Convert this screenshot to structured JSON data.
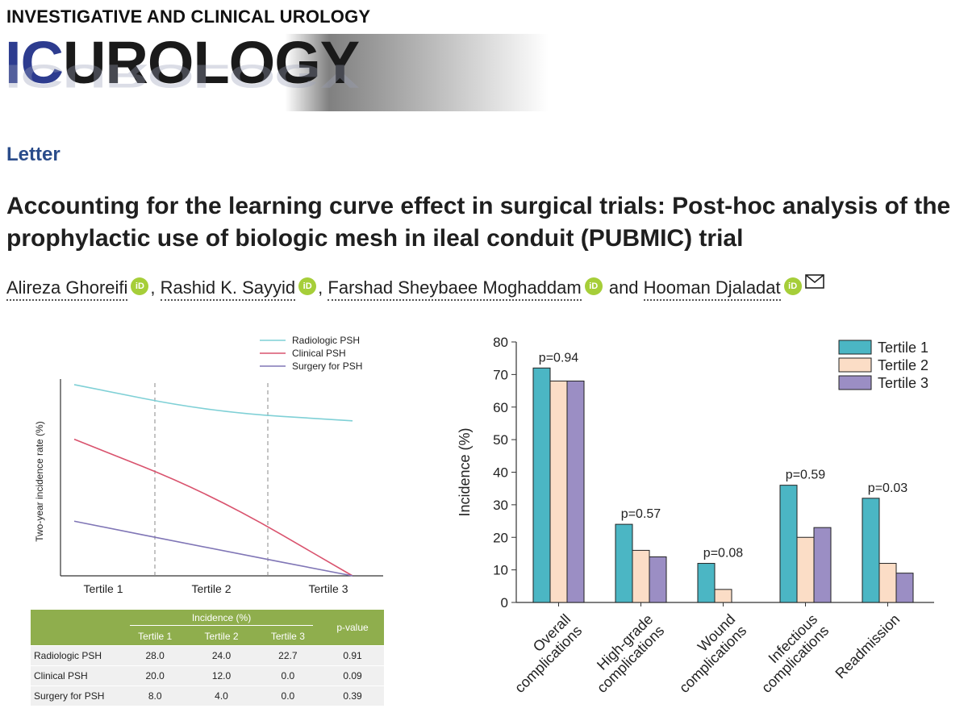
{
  "journal": {
    "top": "INVESTIGATIVE AND CLINICAL UROLOGY",
    "logo_ic": "IC",
    "logo_rest": "UROLOGY"
  },
  "article": {
    "type": "Letter",
    "title": "Accounting for the learning curve effect in surgical trials: Post-hoc analysis of the prophylactic use of biologic mesh in ileal conduit (PUBMIC) trial"
  },
  "authors": {
    "names": [
      "Alireza Ghoreifi",
      "Rashid K. Sayyid",
      "Farshad Sheybaee Moghaddam",
      "Hooman Djaladat"
    ],
    "sep1": ", ",
    "sep2": ", ",
    "sep3": " and ",
    "orcid_label": "iD",
    "orcid_color": "#a6ce39"
  },
  "chart_data": [
    {
      "type": "line",
      "ylabel": "Two-year incidence rate (%)",
      "categories": [
        "Tertile 1",
        "Tertile 2",
        "Tertile 3"
      ],
      "series": [
        {
          "name": "Radiologic PSH",
          "color": "#7fd0d6",
          "values": [
            28.0,
            24.0,
            22.7
          ]
        },
        {
          "name": "Clinical PSH",
          "color": "#d9536e",
          "values": [
            20.0,
            12.0,
            0.0
          ]
        },
        {
          "name": "Surgery for PSH",
          "color": "#8076b6",
          "values": [
            8.0,
            4.0,
            0.0
          ]
        }
      ],
      "ylim": [
        0,
        30
      ],
      "legend": "top-right",
      "vertical_dividers": true
    },
    {
      "type": "bar",
      "ylabel": "Incidence (%)",
      "categories": [
        [
          "Overall",
          "complications"
        ],
        [
          "High-grade",
          "complications"
        ],
        [
          "Wound",
          "complications"
        ],
        [
          "Infectious",
          "complications"
        ],
        [
          "Readmission"
        ]
      ],
      "series": [
        {
          "name": "Tertile 1",
          "color": "#4bb6c4",
          "values": [
            72,
            24,
            12,
            36,
            32
          ]
        },
        {
          "name": "Tertile 2",
          "color": "#fbddc6",
          "values": [
            68,
            16,
            4,
            20,
            12
          ]
        },
        {
          "name": "Tertile 3",
          "color": "#9b8ec4",
          "values": [
            68,
            14,
            0,
            23,
            9
          ]
        }
      ],
      "annotations": [
        "p=0.94",
        "p=0.57",
        "p=0.08",
        "p=0.59",
        "p=0.03"
      ],
      "ylim": [
        0,
        80
      ],
      "yticks": [
        0,
        10,
        20,
        30,
        40,
        50,
        60,
        70,
        80
      ],
      "legend": "top-right"
    }
  ],
  "table": {
    "header_group": "Incidence (%)",
    "pvalue_label": "p-value",
    "columns": [
      "Tertile 1",
      "Tertile 2",
      "Tertile 3"
    ],
    "rows": [
      {
        "label": "Radiologic PSH",
        "cells": [
          "28.0",
          "24.0",
          "22.7",
          "0.91"
        ]
      },
      {
        "label": "Clinical PSH",
        "cells": [
          "20.0",
          "12.0",
          "0.0",
          "0.09"
        ]
      },
      {
        "label": "Surgery for PSH",
        "cells": [
          "8.0",
          "4.0",
          "0.0",
          "0.39"
        ]
      }
    ],
    "header_color": "#8fae4d"
  }
}
